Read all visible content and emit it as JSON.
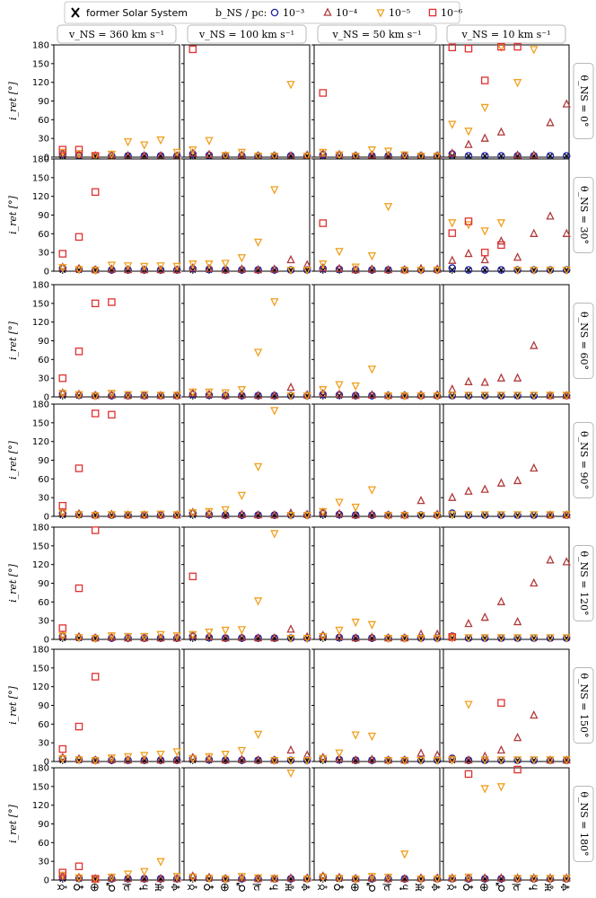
{
  "legend": {
    "former_label": "former Solar System",
    "b_label": "b_NS / pc:",
    "entries": [
      {
        "label": "10⁻³",
        "marker": "circle",
        "color": "#1f1fa8"
      },
      {
        "label": "10⁻⁴",
        "marker": "triangle-up",
        "color": "#b03a3a"
      },
      {
        "label": "10⁻⁵",
        "marker": "triangle-down",
        "color": "#f0a020"
      },
      {
        "label": "10⁻⁶",
        "marker": "square",
        "color": "#e03030"
      }
    ]
  },
  "column_headers": [
    "v_NS = 360 km s⁻¹",
    "v_NS = 100 km s⁻¹",
    "v_NS = 50 km s⁻¹",
    "v_NS = 10 km s⁻¹"
  ],
  "row_labels": [
    "θ_NS = 0°",
    "θ_NS = 30°",
    "θ_NS = 60°",
    "θ_NS = 90°",
    "θ_NS = 120°",
    "θ_NS = 150°",
    "θ_NS = 180°"
  ],
  "chart_data": {
    "type": "scatter",
    "title": "",
    "ylabel": "i_ret [°]",
    "xlabel": "",
    "ylim": [
      0,
      180
    ],
    "yticks": [
      0,
      30,
      60,
      90,
      120,
      150,
      180
    ],
    "categories": [
      "☿",
      "♀",
      "⊕",
      "♂",
      "♃",
      "♄",
      "♅",
      "♆"
    ],
    "category_names": [
      "Mercury",
      "Venus",
      "Earth",
      "Mars",
      "Jupiter",
      "Saturn",
      "Uranus",
      "Neptune"
    ],
    "series_names": [
      "1e-3",
      "1e-4",
      "1e-5",
      "1e-6"
    ],
    "former_value": 2,
    "panels": [
      [
        {
          "s1": [
            5,
            3,
            2,
            2,
            2,
            2,
            2,
            2
          ],
          "s2": [
            6,
            4,
            2,
            3,
            2,
            2,
            2,
            2
          ],
          "s3": [
            8,
            6,
            2,
            5,
            25,
            20,
            28,
            8
          ],
          "s4": [
            12,
            12,
            2,
            null,
            null,
            null,
            null,
            null
          ]
        },
        {
          "s1": [
            5,
            3,
            2,
            2,
            2,
            2,
            2,
            2
          ],
          "s2": [
            6,
            4,
            2,
            3,
            2,
            2,
            2,
            3
          ],
          "s3": [
            12,
            27,
            3,
            8,
            2,
            2,
            117,
            2
          ],
          "s4": [
            173,
            null,
            null,
            null,
            null,
            null,
            null,
            null
          ]
        },
        {
          "s1": [
            4,
            3,
            2,
            2,
            2,
            2,
            2,
            2
          ],
          "s2": [
            5,
            4,
            2,
            3,
            2,
            2,
            2,
            2
          ],
          "s3": [
            8,
            4,
            2,
            12,
            10,
            4,
            2,
            2
          ],
          "s4": [
            103,
            null,
            null,
            null,
            null,
            null,
            null,
            null
          ]
        },
        {
          "s1": [
            5,
            2,
            2,
            2,
            2,
            2,
            2,
            2
          ],
          "s2": [
            6,
            20,
            30,
            40,
            3,
            3,
            55,
            85
          ],
          "s3": [
            53,
            42,
            80,
            177,
            120,
            173,
            null,
            null
          ],
          "s4": [
            176,
            174,
            123,
            177,
            177,
            null,
            null,
            null
          ]
        }
      ],
      [
        {
          "s1": [
            5,
            3,
            2,
            2,
            2,
            2,
            2,
            2
          ],
          "s2": [
            6,
            4,
            2,
            3,
            2,
            2,
            2,
            2
          ],
          "s3": [
            6,
            3,
            2,
            10,
            9,
            8,
            9,
            8
          ],
          "s4": [
            28,
            55,
            127,
            null,
            null,
            null,
            null,
            null
          ]
        },
        {
          "s1": [
            4,
            3,
            2,
            2,
            2,
            2,
            2,
            2
          ],
          "s2": [
            5,
            4,
            2,
            3,
            2,
            3,
            18,
            10
          ],
          "s3": [
            12,
            12,
            13,
            22,
            47,
            131,
            2,
            2
          ],
          "s4": [
            null,
            null,
            null,
            null,
            null,
            null,
            null,
            null
          ]
        },
        {
          "s1": [
            4,
            3,
            2,
            2,
            2,
            2,
            2,
            2
          ],
          "s2": [
            5,
            4,
            2,
            3,
            2,
            2,
            4,
            3
          ],
          "s3": [
            12,
            32,
            7,
            25,
            104,
            2,
            2,
            2
          ],
          "s4": [
            77,
            null,
            null,
            null,
            null,
            null,
            null,
            null
          ]
        },
        {
          "s1": [
            5,
            2,
            2,
            2,
            2,
            2,
            2,
            2
          ],
          "s2": [
            17,
            28,
            18,
            48,
            22,
            60,
            88,
            60
          ],
          "s3": [
            78,
            75,
            65,
            78,
            2,
            2,
            2,
            2
          ],
          "s4": [
            61,
            80,
            30,
            42,
            null,
            null,
            null,
            null
          ]
        }
      ],
      [
        {
          "s1": [
            5,
            3,
            2,
            2,
            2,
            2,
            2,
            2
          ],
          "s2": [
            6,
            4,
            2,
            3,
            2,
            2,
            2,
            2
          ],
          "s3": [
            6,
            4,
            2,
            6,
            4,
            4,
            3,
            3
          ],
          "s4": [
            30,
            73,
            150,
            152,
            null,
            null,
            null,
            null
          ]
        },
        {
          "s1": [
            4,
            3,
            2,
            2,
            2,
            2,
            2,
            2
          ],
          "s2": [
            6,
            4,
            2,
            3,
            2,
            2,
            15,
            3
          ],
          "s3": [
            8,
            8,
            7,
            12,
            72,
            153,
            2,
            2
          ],
          "s4": [
            null,
            null,
            null,
            null,
            null,
            null,
            null,
            null
          ]
        },
        {
          "s1": [
            4,
            3,
            2,
            2,
            2,
            2,
            2,
            2
          ],
          "s2": [
            5,
            4,
            2,
            3,
            2,
            2,
            3,
            3
          ],
          "s3": [
            12,
            20,
            18,
            45,
            2,
            2,
            2,
            2
          ],
          "s4": [
            null,
            null,
            null,
            null,
            null,
            null,
            null,
            null
          ]
        },
        {
          "s1": [
            2,
            2,
            2,
            2,
            2,
            2,
            2,
            2
          ],
          "s2": [
            12,
            24,
            23,
            30,
            30,
            82,
            2,
            2
          ],
          "s3": [
            3,
            3,
            3,
            3,
            3,
            3,
            3,
            3
          ],
          "s4": [
            null,
            null,
            null,
            null,
            null,
            null,
            null,
            null
          ]
        }
      ],
      [
        {
          "s1": [
            5,
            3,
            2,
            2,
            2,
            2,
            2,
            2
          ],
          "s2": [
            6,
            4,
            2,
            3,
            2,
            2,
            2,
            2
          ],
          "s3": [
            6,
            3,
            2,
            3,
            3,
            3,
            4,
            3
          ],
          "s4": [
            17,
            77,
            165,
            163,
            null,
            null,
            null,
            null
          ]
        },
        {
          "s1": [
            5,
            3,
            2,
            2,
            2,
            2,
            2,
            2
          ],
          "s2": [
            6,
            4,
            2,
            3,
            2,
            2,
            5,
            3
          ],
          "s3": [
            6,
            8,
            11,
            34,
            80,
            170,
            2,
            2
          ],
          "s4": [
            null,
            null,
            null,
            null,
            null,
            null,
            null,
            null
          ]
        },
        {
          "s1": [
            5,
            3,
            2,
            2,
            2,
            2,
            2,
            2
          ],
          "s2": [
            6,
            4,
            2,
            3,
            2,
            2,
            25,
            3
          ],
          "s3": [
            8,
            23,
            15,
            43,
            2,
            2,
            2,
            2
          ],
          "s4": [
            null,
            null,
            null,
            null,
            null,
            null,
            null,
            null
          ]
        },
        {
          "s1": [
            5,
            2,
            2,
            2,
            2,
            2,
            2,
            2
          ],
          "s2": [
            30,
            40,
            43,
            53,
            57,
            77,
            2,
            2
          ],
          "s3": [
            3,
            3,
            3,
            3,
            3,
            3,
            3,
            3
          ],
          "s4": [
            null,
            null,
            null,
            null,
            null,
            null,
            null,
            null
          ]
        }
      ],
      [
        {
          "s1": [
            5,
            3,
            2,
            2,
            2,
            2,
            2,
            2
          ],
          "s2": [
            6,
            4,
            2,
            3,
            2,
            2,
            2,
            2
          ],
          "s3": [
            6,
            3,
            2,
            6,
            5,
            5,
            8,
            6
          ],
          "s4": [
            18,
            82,
            175,
            null,
            null,
            null,
            null,
            null
          ]
        },
        {
          "s1": [
            5,
            3,
            2,
            2,
            2,
            2,
            2,
            2
          ],
          "s2": [
            6,
            4,
            2,
            3,
            2,
            2,
            16,
            4
          ],
          "s3": [
            8,
            12,
            15,
            16,
            62,
            170,
            2,
            2
          ],
          "s4": [
            101,
            null,
            null,
            null,
            null,
            null,
            null,
            null
          ]
        },
        {
          "s1": [
            5,
            3,
            2,
            2,
            2,
            2,
            2,
            2
          ],
          "s2": [
            6,
            4,
            2,
            3,
            2,
            2,
            8,
            8
          ],
          "s3": [
            5,
            15,
            28,
            24,
            2,
            2,
            2,
            2
          ],
          "s4": [
            null,
            null,
            null,
            null,
            null,
            null,
            null,
            null
          ]
        },
        {
          "s1": [
            5,
            2,
            2,
            2,
            2,
            2,
            2,
            2
          ],
          "s2": [
            4,
            25,
            35,
            60,
            28,
            90,
            127,
            124
          ],
          "s3": [
            3,
            3,
            3,
            3,
            3,
            3,
            3,
            3
          ],
          "s4": [
            4,
            null,
            null,
            null,
            null,
            null,
            null,
            null
          ]
        }
      ],
      [
        {
          "s1": [
            5,
            3,
            2,
            2,
            2,
            2,
            2,
            2
          ],
          "s2": [
            6,
            4,
            2,
            3,
            2,
            2,
            2,
            2
          ],
          "s3": [
            5,
            3,
            2,
            6,
            8,
            10,
            12,
            16
          ],
          "s4": [
            20,
            56,
            136,
            null,
            null,
            null,
            null,
            null
          ]
        },
        {
          "s1": [
            5,
            3,
            2,
            2,
            2,
            2,
            2,
            2
          ],
          "s2": [
            6,
            4,
            2,
            3,
            2,
            2,
            18,
            10
          ],
          "s3": [
            5,
            8,
            12,
            18,
            44,
            2,
            2,
            2
          ],
          "s4": [
            null,
            null,
            null,
            null,
            null,
            null,
            null,
            null
          ]
        },
        {
          "s1": [
            5,
            3,
            2,
            2,
            2,
            2,
            2,
            2
          ],
          "s2": [
            6,
            4,
            2,
            3,
            2,
            2,
            13,
            10
          ],
          "s3": [
            5,
            14,
            43,
            41,
            2,
            2,
            2,
            2
          ],
          "s4": [
            null,
            null,
            null,
            null,
            null,
            null,
            null,
            null
          ]
        },
        {
          "s1": [
            5,
            2,
            2,
            2,
            2,
            2,
            2,
            2
          ],
          "s2": [
            4,
            2,
            8,
            18,
            38,
            74,
            2,
            2
          ],
          "s3": [
            3,
            92,
            3,
            3,
            3,
            3,
            3,
            3
          ],
          "s4": [
            null,
            null,
            null,
            94,
            null,
            null,
            null,
            null
          ]
        }
      ],
      [
        {
          "s1": [
            5,
            3,
            2,
            2,
            2,
            2,
            2,
            2
          ],
          "s2": [
            6,
            4,
            2,
            3,
            2,
            2,
            2,
            2
          ],
          "s3": [
            8,
            4,
            2,
            5,
            10,
            14,
            30,
            6
          ],
          "s4": [
            12,
            22,
            2,
            null,
            null,
            null,
            null,
            null
          ]
        },
        {
          "s1": [
            5,
            3,
            2,
            2,
            2,
            2,
            2,
            2
          ],
          "s2": [
            6,
            4,
            2,
            3,
            2,
            2,
            3,
            3
          ],
          "s3": [
            5,
            3,
            2,
            6,
            4,
            3,
            172,
            2
          ],
          "s4": [
            null,
            null,
            null,
            null,
            null,
            null,
            null,
            null
          ]
        },
        {
          "s1": [
            5,
            3,
            2,
            2,
            2,
            2,
            2,
            2
          ],
          "s2": [
            6,
            4,
            2,
            3,
            2,
            2,
            3,
            3
          ],
          "s3": [
            5,
            3,
            2,
            6,
            5,
            42,
            2,
            2
          ],
          "s4": [
            null,
            null,
            null,
            null,
            null,
            null,
            null,
            null
          ]
        },
        {
          "s1": [
            2,
            2,
            2,
            2,
            2,
            2,
            2,
            2
          ],
          "s2": [
            3,
            3,
            3,
            3,
            3,
            3,
            3,
            3
          ],
          "s3": [
            3,
            5,
            147,
            150,
            3,
            3,
            3,
            3
          ],
          "s4": [
            null,
            170,
            null,
            null,
            178,
            null,
            null,
            null
          ]
        }
      ]
    ]
  }
}
